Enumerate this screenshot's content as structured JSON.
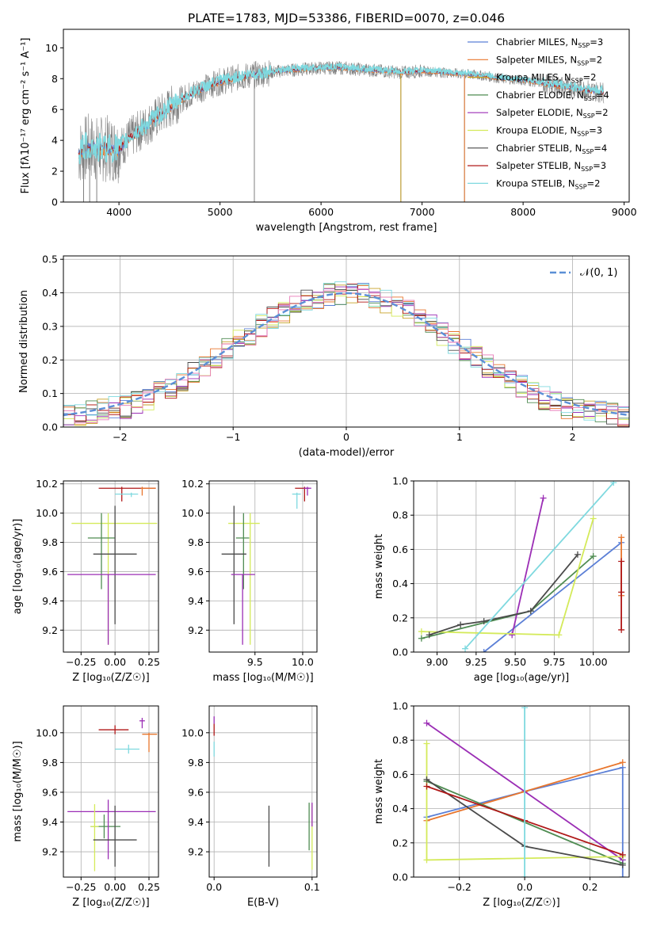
{
  "figure_title": "PLATE=1783, MJD=53386, FIBERID=0070, z=0.046",
  "colors": {
    "Chabrier MILES": "#5b7fd6",
    "Salpeter MILES": "#e8762d",
    "Kroupa MILES": "#c8a227",
    "Chabrier ELODIE": "#4f8c52",
    "Salpeter ELODIE": "#9b2eb5",
    "Kroupa ELODIE": "#d4ea5a",
    "Chabrier STELIB": "#4a4a4a",
    "Salpeter STELIB": "#b01818",
    "Kroupa STELIB": "#7fd9df",
    "normal": "#5b8fd6",
    "grid": "#b0b0b0",
    "data_spectrum": "#808080"
  },
  "chart_data": [
    {
      "id": "spectrum",
      "type": "line",
      "title": "PLATE=1783, MJD=53386, FIBERID=0070, z=0.046",
      "xlabel": "wavelength [Angstrom, rest frame]",
      "ylabel": "Flux [fλ10⁻¹⁷ erg cm⁻² s⁻¹ A⁻¹]",
      "xlim": [
        3450,
        9050
      ],
      "ylim": [
        0,
        11.2
      ],
      "xticks": [
        4000,
        5000,
        6000,
        7000,
        8000,
        9000
      ],
      "xtick_labels": [
        "4000",
        "5000",
        "6000",
        "7000",
        "8000",
        "9000"
      ],
      "yticks": [
        0,
        2,
        4,
        6,
        8,
        10
      ],
      "ytick_labels": [
        "0",
        "2",
        "4",
        "6",
        "8",
        "10"
      ],
      "grid": false,
      "legend_position": "right",
      "legend": [
        {
          "name": "Chabrier MILES",
          "nssp": "3"
        },
        {
          "name": "Salpeter MILES",
          "nssp": "2"
        },
        {
          "name": "Kroupa MILES",
          "nssp": "2"
        },
        {
          "name": "Chabrier ELODIE",
          "nssp": "4"
        },
        {
          "name": "Salpeter ELODIE",
          "nssp": "2"
        },
        {
          "name": "Kroupa ELODIE",
          "nssp": "3"
        },
        {
          "name": "Chabrier STELIB",
          "nssp": "4"
        },
        {
          "name": "Salpeter STELIB",
          "nssp": "3"
        },
        {
          "name": "Kroupa STELIB",
          "nssp": "2"
        }
      ],
      "continuum": {
        "x": [
          3600,
          3700,
          3800,
          3900,
          4000,
          4100,
          4200,
          4400,
          4600,
          4800,
          5000,
          5200,
          5400,
          5600,
          5800,
          6000,
          6200,
          6400,
          6600,
          6800,
          7000,
          7200,
          7400,
          7600,
          7800,
          8000,
          8200,
          8400,
          8600,
          8800
        ],
        "y": [
          3.2,
          3.6,
          3.4,
          3.5,
          3.4,
          4.1,
          4.6,
          5.6,
          6.6,
          7.3,
          7.8,
          8.1,
          8.3,
          8.5,
          8.6,
          8.7,
          8.7,
          8.6,
          8.5,
          8.4,
          8.5,
          8.4,
          8.3,
          8.2,
          8.0,
          7.9,
          7.7,
          7.5,
          7.3,
          7.1
        ]
      }
    },
    {
      "id": "residuals",
      "type": "step-histogram",
      "xlabel": "(data-model)/error",
      "ylabel": "Normed distribution",
      "xlim": [
        -2.5,
        2.5
      ],
      "ylim": [
        0,
        0.51
      ],
      "xticks": [
        -2,
        -1,
        0,
        1,
        2
      ],
      "xtick_labels": [
        "−2",
        "−1",
        "0",
        "1",
        "2"
      ],
      "yticks": [
        0,
        0.1,
        0.2,
        0.3,
        0.4,
        0.5
      ],
      "ytick_labels": [
        "0.0",
        "0.1",
        "0.2",
        "0.3",
        "0.4",
        "0.5"
      ],
      "grid": true,
      "legend_position": "top-right",
      "curve_label": "𝒩(0, 1)",
      "bin_width": 0.1
    },
    {
      "id": "age_vs_Z",
      "type": "errorbar",
      "xlabel": "Z [log₁₀(Z/Z☉)]",
      "ylabel": "age  [log₁₀(age/yr)]",
      "xlim": [
        -0.38,
        0.32
      ],
      "ylim": [
        9.05,
        10.22
      ],
      "xticks": [
        -0.25,
        0,
        0.25
      ],
      "xtick_labels": [
        "−0.25",
        "0.00",
        "0.25"
      ],
      "yticks": [
        9.2,
        9.4,
        9.6,
        9.8,
        10.0,
        10.2
      ],
      "ytick_labels": [
        "9.2",
        "9.4",
        "9.6",
        "9.8",
        "10.0",
        "10.2"
      ],
      "grid": true,
      "points": [
        {
          "series": "Salpeter STELIB",
          "x": 0.05,
          "y": 10.17,
          "xerr": [
            0.17,
            0.25
          ],
          "yerr": [
            0.09,
            0.01
          ]
        },
        {
          "series": "Salpeter MILES",
          "x": 0.2,
          "y": 10.17,
          "xerr": [
            0.01,
            0.1
          ],
          "yerr": [
            0.05,
            0.01
          ]
        },
        {
          "series": "Kroupa STELIB",
          "x": 0.12,
          "y": 10.13,
          "xerr": [
            0.12,
            0.05
          ],
          "yerr": [
            0.02,
            0.01
          ]
        },
        {
          "series": "Kroupa ELODIE",
          "x": -0.05,
          "y": 9.93,
          "xerr": [
            0.27,
            0.36
          ],
          "yerr": [
            0.83,
            0.07
          ]
        },
        {
          "series": "Chabrier ELODIE",
          "x": -0.1,
          "y": 9.83,
          "xerr": [
            0.1,
            0.1
          ],
          "yerr": [
            0.35,
            0.17
          ]
        },
        {
          "series": "Chabrier STELIB",
          "x": 0.0,
          "y": 9.72,
          "xerr": [
            0.16,
            0.16
          ],
          "yerr": [
            0.48,
            0.33
          ]
        },
        {
          "series": "Salpeter ELODIE",
          "x": -0.05,
          "y": 9.58,
          "xerr": [
            0.3,
            0.35
          ],
          "yerr": [
            0.48,
            0.0
          ]
        }
      ]
    },
    {
      "id": "age_vs_mass",
      "type": "errorbar",
      "xlabel": "mass [log₁₀(M/M☉)]",
      "ylabel": "",
      "xlim": [
        9.02,
        10.15
      ],
      "ylim": [
        9.05,
        10.22
      ],
      "xticks": [
        9.5,
        10.0
      ],
      "xtick_labels": [
        "9.5",
        "10.0"
      ],
      "yticks": [
        9.2,
        9.4,
        9.6,
        9.8,
        10.0,
        10.2
      ],
      "ytick_labels": [
        "9.2",
        "9.4",
        "9.6",
        "9.8",
        "10.0",
        "10.2"
      ],
      "grid": true,
      "points": [
        {
          "series": "Salpeter STELIB",
          "x": 10.02,
          "y": 10.17,
          "xerr": [
            0.1,
            0.05
          ],
          "yerr": [
            0.09,
            0.01
          ]
        },
        {
          "series": "Salpeter ELODIE",
          "x": 10.05,
          "y": 10.17,
          "xerr": [
            0.04,
            0.04
          ],
          "yerr": [
            0.05,
            0.01
          ]
        },
        {
          "series": "Kroupa STELIB",
          "x": 9.94,
          "y": 10.13,
          "xerr": [
            0.05,
            0.04
          ],
          "yerr": [
            0.1,
            0.01
          ]
        },
        {
          "series": "Kroupa ELODIE",
          "x": 9.45,
          "y": 9.93,
          "xerr": [
            0.23,
            0.1
          ],
          "yerr": [
            0.83,
            0.07
          ]
        },
        {
          "series": "Chabrier ELODIE",
          "x": 9.38,
          "y": 9.83,
          "xerr": [
            0.08,
            0.06
          ],
          "yerr": [
            0.35,
            0.17
          ]
        },
        {
          "series": "Chabrier STELIB",
          "x": 9.28,
          "y": 9.72,
          "xerr": [
            0.13,
            0.13
          ],
          "yerr": [
            0.48,
            0.33
          ]
        },
        {
          "series": "Salpeter ELODIE",
          "x": 9.37,
          "y": 9.58,
          "xerr": [
            0.12,
            0.13
          ],
          "yerr": [
            0.48,
            0.0
          ]
        }
      ]
    },
    {
      "id": "weight_vs_age",
      "type": "line",
      "xlabel": "age  [log₁₀(age/yr)]",
      "ylabel": "mass weight",
      "xlim": [
        8.85,
        10.23
      ],
      "ylim": [
        0,
        1
      ],
      "xticks": [
        9.0,
        9.25,
        9.5,
        9.75,
        10.0
      ],
      "xtick_labels": [
        "9.00",
        "9.25",
        "9.50",
        "9.75",
        "10.00"
      ],
      "yticks": [
        0,
        0.2,
        0.4,
        0.6,
        0.8,
        1.0
      ],
      "ytick_labels": [
        "0.0",
        "0.2",
        "0.4",
        "0.6",
        "0.8",
        "1.0"
      ],
      "grid": true,
      "series": [
        {
          "name": "Chabrier MILES",
          "x": [
            9.3,
            10.18
          ],
          "y": [
            0.0,
            0.64
          ]
        },
        {
          "name": "Salpeter MILES",
          "x": [
            10.18,
            10.18
          ],
          "y": [
            0.33,
            0.67
          ]
        },
        {
          "name": "Chabrier ELODIE",
          "x": [
            8.9,
            9.6,
            10.0
          ],
          "y": [
            0.08,
            0.24,
            0.56
          ]
        },
        {
          "name": "Salpeter ELODIE",
          "x": [
            9.48,
            9.68
          ],
          "y": [
            0.1,
            0.9
          ]
        },
        {
          "name": "Kroupa ELODIE",
          "x": [
            8.9,
            9.78,
            10.0
          ],
          "y": [
            0.12,
            0.1,
            0.78
          ]
        },
        {
          "name": "Chabrier STELIB",
          "x": [
            8.95,
            9.15,
            9.3,
            9.6,
            9.9
          ],
          "y": [
            0.1,
            0.16,
            0.18,
            0.24,
            0.57
          ]
        },
        {
          "name": "Salpeter STELIB",
          "x": [
            10.18,
            10.18,
            10.18
          ],
          "y": [
            0.13,
            0.35,
            0.53
          ]
        },
        {
          "name": "Kroupa STELIB",
          "x": [
            9.18,
            10.13
          ],
          "y": [
            0.02,
            0.99
          ]
        }
      ]
    },
    {
      "id": "mass_vs_Z",
      "type": "errorbar",
      "xlabel": "Z [log₁₀(Z/Z☉)]",
      "ylabel": "mass [log₁₀(M/M☉)]",
      "xlim": [
        -0.38,
        0.32
      ],
      "ylim": [
        9.03,
        10.18
      ],
      "xticks": [
        -0.25,
        0,
        0.25
      ],
      "xtick_labels": [
        "−0.25",
        "0.00",
        "0.25"
      ],
      "yticks": [
        9.2,
        9.4,
        9.6,
        9.8,
        10.0
      ],
      "ytick_labels": [
        "9.2",
        "9.4",
        "9.6",
        "9.8",
        "10.0"
      ],
      "grid": true,
      "points": [
        {
          "series": "Salpeter STELIB",
          "x": 0.0,
          "y": 10.02,
          "xerr": [
            0.12,
            0.1
          ],
          "yerr": [
            0.03,
            0.03
          ]
        },
        {
          "series": "Salpeter MILES",
          "x": 0.25,
          "y": 9.99,
          "xerr": [
            0.05,
            0.06
          ],
          "yerr": [
            0.12,
            0.01
          ]
        },
        {
          "series": "Salpeter ELODIE",
          "x": 0.2,
          "y": 10.08,
          "xerr": [
            0.02,
            0.02
          ],
          "yerr": [
            0.05,
            0.02
          ]
        },
        {
          "series": "Kroupa STELIB",
          "x": 0.1,
          "y": 9.89,
          "xerr": [
            0.1,
            0.08
          ],
          "yerr": [
            0.03,
            0.03
          ]
        },
        {
          "series": "Chabrier ELODIE",
          "x": -0.08,
          "y": 9.37,
          "xerr": [
            0.1,
            0.12
          ],
          "yerr": [
            0.08,
            0.08
          ]
        },
        {
          "series": "Salpeter ELODIE",
          "x": -0.05,
          "y": 9.47,
          "xerr": [
            0.3,
            0.35
          ],
          "yerr": [
            0.32,
            0.08
          ]
        },
        {
          "series": "Kroupa ELODIE",
          "x": -0.15,
          "y": 9.37,
          "xerr": [
            0.03,
            0.03
          ],
          "yerr": [
            0.3,
            0.15
          ]
        },
        {
          "series": "Chabrier STELIB",
          "x": 0.0,
          "y": 9.28,
          "xerr": [
            0.16,
            0.16
          ],
          "yerr": [
            0.18,
            0.23
          ]
        }
      ]
    },
    {
      "id": "mass_vs_ebv",
      "type": "errorbar",
      "xlabel": "E(B-V)",
      "ylabel": "",
      "xlim": [
        -0.005,
        0.105
      ],
      "ylim": [
        9.03,
        10.18
      ],
      "xticks": [
        0.0,
        0.1
      ],
      "xtick_labels": [
        "0.0",
        "0.1"
      ],
      "yticks": [
        9.2,
        9.4,
        9.6,
        9.8,
        10.0
      ],
      "ytick_labels": [
        "9.2",
        "9.4",
        "9.6",
        "9.8",
        "10.0"
      ],
      "grid": true,
      "points": [
        {
          "series": "Salpeter STELIB",
          "x": 0.0,
          "y": 10.02,
          "xerr": [
            0.0,
            0.0
          ],
          "yerr": [
            0.04,
            0.04
          ]
        },
        {
          "series": "Salpeter ELODIE",
          "x": 0.0,
          "y": 10.08,
          "xerr": [
            0.0,
            0.0
          ],
          "yerr": [
            0.02,
            0.03
          ]
        },
        {
          "series": "Kroupa STELIB",
          "x": 0.0,
          "y": 9.89,
          "xerr": [
            0.0,
            0.0
          ],
          "yerr": [
            0.05,
            0.05
          ]
        },
        {
          "series": "Chabrier STELIB",
          "x": 0.056,
          "y": 9.3,
          "xerr": [
            0.0,
            0.0
          ],
          "yerr": [
            0.2,
            0.21
          ]
        },
        {
          "series": "Chabrier ELODIE",
          "x": 0.097,
          "y": 9.37,
          "xerr": [
            0.0,
            0.0
          ],
          "yerr": [
            0.16,
            0.16
          ]
        },
        {
          "series": "Kroupa ELODIE",
          "x": 0.1,
          "y": 9.3,
          "xerr": [
            0.0,
            0.0
          ],
          "yerr": [
            0.22,
            0.22
          ]
        },
        {
          "series": "Salpeter ELODIE",
          "x": 0.1,
          "y": 9.45,
          "xerr": [
            0.0,
            0.0
          ],
          "yerr": [
            0.08,
            0.08
          ]
        }
      ]
    },
    {
      "id": "weight_vs_Z",
      "type": "line",
      "xlabel": "Z [log₁₀(Z/Z☉)]",
      "ylabel": "mass weight",
      "xlim": [
        -0.34,
        0.32
      ],
      "ylim": [
        0,
        1
      ],
      "xticks": [
        -0.2,
        0.0,
        0.2
      ],
      "xtick_labels": [
        "−0.2",
        "0.0",
        "0.2"
      ],
      "yticks": [
        0,
        0.2,
        0.4,
        0.6,
        0.8,
        1.0
      ],
      "ytick_labels": [
        "0.0",
        "0.2",
        "0.4",
        "0.6",
        "0.8",
        "1.0"
      ],
      "grid": true,
      "series": [
        {
          "name": "Chabrier MILES",
          "x": [
            -0.3,
            0.0,
            0.3,
            0.3
          ],
          "y": [
            0.35,
            0.5,
            0.64,
            0.0
          ]
        },
        {
          "name": "Salpeter MILES",
          "x": [
            -0.3,
            0.0,
            0.3
          ],
          "y": [
            0.33,
            0.5,
            0.67
          ]
        },
        {
          "name": "Chabrier ELODIE",
          "x": [
            -0.3,
            0.3
          ],
          "y": [
            0.56,
            0.08
          ]
        },
        {
          "name": "Salpeter ELODIE",
          "x": [
            -0.3,
            0.3
          ],
          "y": [
            0.9,
            0.1
          ]
        },
        {
          "name": "Kroupa ELODIE",
          "x": [
            -0.3,
            -0.3,
            0.3
          ],
          "y": [
            0.78,
            0.1,
            0.12
          ]
        },
        {
          "name": "Chabrier STELIB",
          "x": [
            -0.3,
            0.0,
            0.3
          ],
          "y": [
            0.57,
            0.18,
            0.07
          ]
        },
        {
          "name": "Salpeter STELIB",
          "x": [
            -0.3,
            0.0,
            0.3
          ],
          "y": [
            0.53,
            0.33,
            0.13
          ]
        },
        {
          "name": "Kroupa STELIB",
          "x": [
            0.0,
            0.0
          ],
          "y": [
            0.0,
            0.99
          ]
        }
      ]
    }
  ]
}
